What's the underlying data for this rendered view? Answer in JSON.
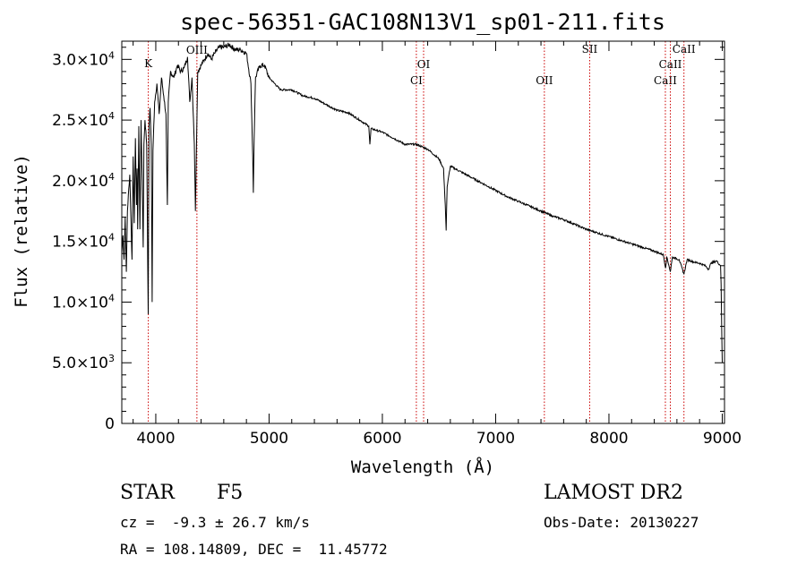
{
  "chart_data": {
    "type": "line",
    "title": "spec-56351-GAC108N13V1_sp01-211.fits",
    "xlabel": "Wavelength (Å)",
    "ylabel": "Flux (relative)",
    "xlim": [
      3700,
      9020
    ],
    "ylim": [
      0,
      31500
    ],
    "x_ticks": [
      {
        "value": 4000,
        "label": "4000"
      },
      {
        "value": 5000,
        "label": "5000"
      },
      {
        "value": 6000,
        "label": "6000"
      },
      {
        "value": 7000,
        "label": "7000"
      },
      {
        "value": 8000,
        "label": "8000"
      },
      {
        "value": 9000,
        "label": "9000"
      }
    ],
    "y_ticks": [
      {
        "value": 0,
        "mantissa": "0",
        "exponent": ""
      },
      {
        "value": 5000,
        "mantissa": "5.0×10",
        "exponent": "3"
      },
      {
        "value": 10000,
        "mantissa": "1.0×10",
        "exponent": "4"
      },
      {
        "value": 15000,
        "mantissa": "1.5×10",
        "exponent": "4"
      },
      {
        "value": 20000,
        "mantissa": "2.0×10",
        "exponent": "4"
      },
      {
        "value": 25000,
        "mantissa": "2.5×10",
        "exponent": "4"
      },
      {
        "value": 30000,
        "mantissa": "3.0×10",
        "exponent": "4"
      }
    ],
    "grid": false,
    "line_color": "#000000",
    "marker_color": "#cc0000",
    "lines": [
      {
        "name": "K",
        "wavelength": 3934
      },
      {
        "name": "OIII",
        "wavelength": 4363
      },
      {
        "name": "CI",
        "wavelength": 6300
      },
      {
        "name": "OI",
        "wavelength": 6364
      },
      {
        "name": "OII",
        "wavelength": 7430
      },
      {
        "name": "SII",
        "wavelength": 7830
      },
      {
        "name": "CaII",
        "wavelength": 8498
      },
      {
        "name": "CaII",
        "wavelength": 8542
      },
      {
        "name": "CaII",
        "wavelength": 8662
      }
    ],
    "series": [
      {
        "x": [
          3700,
          3710,
          3720,
          3730,
          3740,
          3750,
          3770,
          3790,
          3800,
          3810,
          3820,
          3830,
          3835,
          3840,
          3850,
          3860,
          3870,
          3880,
          3889,
          3895,
          3905,
          3920,
          3933,
          3940,
          3950,
          3960,
          3968,
          3975,
          3990,
          4010,
          4030,
          4050,
          4070,
          4090,
          4102,
          4110,
          4130,
          4160,
          4190,
          4220,
          4250,
          4280,
          4300,
          4320,
          4340,
          4350,
          4370,
          4400,
          4430,
          4460,
          4490,
          4520,
          4560,
          4600,
          4650,
          4700,
          4750,
          4800,
          4840,
          4856,
          4861,
          4868,
          4880,
          4920,
          4960,
          5000,
          5050,
          5100,
          5150,
          5200,
          5300,
          5400,
          5500,
          5600,
          5700,
          5800,
          5880,
          5890,
          5900,
          6000,
          6100,
          6200,
          6300,
          6400,
          6500,
          6540,
          6555,
          6563,
          6572,
          6600,
          6700,
          6800,
          6900,
          7000,
          7100,
          7200,
          7300,
          7400,
          7500,
          7600,
          7700,
          7800,
          7900,
          8000,
          8100,
          8200,
          8300,
          8400,
          8480,
          8500,
          8510,
          8530,
          8542,
          8560,
          8620,
          8662,
          8690,
          8750,
          8800,
          8850,
          8880,
          8900,
          8950,
          8975,
          8985,
          8990,
          9000
        ],
        "y": [
          14000,
          15500,
          13500,
          17000,
          12500,
          17500,
          20500,
          13500,
          22000,
          16500,
          23500,
          18000,
          21000,
          16000,
          24500,
          16000,
          25000,
          20000,
          14500,
          23000,
          25000,
          23000,
          9000,
          24500,
          26000,
          23000,
          10000,
          22500,
          26500,
          28000,
          25500,
          28500,
          27000,
          25500,
          18000,
          26500,
          29000,
          28500,
          29500,
          29000,
          29300,
          30200,
          26500,
          28500,
          23000,
          17500,
          29000,
          29500,
          30000,
          30500,
          30000,
          30500,
          31000,
          31000,
          31200,
          30800,
          30800,
          30500,
          28000,
          22000,
          19000,
          23500,
          28500,
          29500,
          29500,
          28500,
          28000,
          27500,
          27500,
          27500,
          27000,
          26800,
          26300,
          25800,
          25600,
          25000,
          24500,
          23000,
          24300,
          24000,
          23500,
          23000,
          23000,
          22600,
          21800,
          21000,
          18000,
          15900,
          19500,
          21200,
          20700,
          20200,
          19700,
          19200,
          18700,
          18300,
          17900,
          17500,
          17100,
          16800,
          16400,
          16000,
          15700,
          15400,
          15100,
          14800,
          14500,
          14200,
          13900,
          12800,
          13700,
          13000,
          12500,
          13700,
          13500,
          12300,
          13500,
          13300,
          13200,
          13000,
          12700,
          13200,
          13400,
          13100,
          13000,
          11500,
          5000
        ]
      }
    ]
  },
  "info": {
    "object_type": "STAR",
    "subclass": "F5",
    "survey": "LAMOST DR2",
    "redshift": "cz =  -9.3 ± 26.7 km/s",
    "obs_date": "Obs-Date: 20130227",
    "coords": "RA = 108.14809, DEC =  11.45772"
  }
}
